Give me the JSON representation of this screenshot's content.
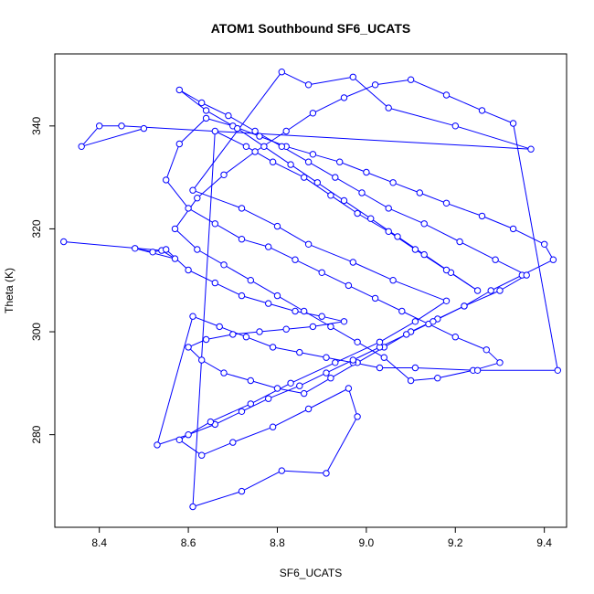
{
  "chart_data": {
    "type": "line",
    "title": "ATOM1 Southbound SF6_UCATS",
    "xlabel": "SF6_UCATS",
    "ylabel": "Theta (K)",
    "xlim": [
      8.3,
      9.45
    ],
    "ylim": [
      262,
      354
    ],
    "xticks": [
      8.4,
      8.6,
      8.8,
      9.0,
      9.2,
      9.4
    ],
    "xtick_labels": [
      "8.4",
      "8.6",
      "8.8",
      "9.0",
      "9.2",
      "9.4"
    ],
    "yticks": [
      280,
      300,
      320,
      340
    ],
    "ytick_labels": [
      "280",
      "300",
      "320",
      "340"
    ],
    "grid": false,
    "marker": "open-circle",
    "colors": {
      "series": "#0000ff",
      "axis": "#000000"
    },
    "series": [
      {
        "x": [
          8.32,
          8.54,
          8.57,
          8.48,
          8.52,
          8.55,
          8.6,
          8.66,
          8.72,
          8.78,
          8.84,
          8.9,
          8.95,
          8.88,
          8.82,
          8.76,
          8.7,
          8.64,
          8.6,
          8.63,
          8.68,
          8.74,
          8.8,
          8.86,
          8.92,
          8.98,
          9.04,
          9.1,
          9.16,
          9.22,
          9.28,
          9.35,
          9.42,
          9.4,
          9.33,
          9.26,
          9.18,
          9.12,
          9.06,
          9.0,
          8.94,
          8.88,
          8.82,
          8.76,
          8.7,
          8.64,
          8.58,
          8.55,
          8.6,
          8.66,
          8.72,
          8.78,
          8.84,
          8.9,
          8.96,
          9.02,
          9.08,
          9.14,
          9.2,
          9.27,
          9.3,
          9.24,
          9.16,
          9.1,
          9.04,
          8.98,
          8.92,
          8.86,
          8.8,
          8.74,
          8.68,
          8.62,
          8.57,
          8.62,
          8.68,
          8.75,
          8.82,
          8.88,
          8.95,
          9.02,
          9.1,
          9.18,
          9.26,
          9.33,
          9.43,
          9.25,
          9.11,
          9.03,
          8.97,
          8.91,
          8.85,
          8.79,
          8.73,
          8.67,
          8.61,
          8.53,
          8.6,
          8.66,
          8.72,
          8.78,
          8.85,
          8.91,
          8.97,
          9.03,
          9.09,
          9.15,
          9.22,
          9.3,
          9.36,
          9.29,
          9.21,
          9.13,
          9.05,
          8.99,
          8.93,
          8.87,
          8.81,
          8.75,
          8.69,
          8.63,
          8.58,
          8.64,
          8.71,
          8.77,
          8.83,
          8.89,
          8.95,
          9.01,
          9.07,
          9.13,
          9.19,
          9.25,
          9.18,
          9.11,
          9.05,
          8.98,
          8.92,
          8.86,
          8.79,
          8.73,
          8.66,
          8.61,
          8.72,
          8.81,
          8.91,
          8.98,
          8.96,
          8.87,
          8.79,
          8.7,
          8.63,
          8.58,
          8.65,
          8.74,
          8.83,
          8.93,
          9.03,
          9.11,
          9.18,
          9.06,
          8.97,
          8.87,
          8.8,
          8.72,
          8.61,
          8.81,
          8.87,
          8.97,
          9.05,
          9.2,
          9.37,
          8.45,
          8.4,
          8.36,
          8.5
        ],
        "y": [
          317.5,
          315.8,
          314.2,
          316.2,
          315.5,
          316.0,
          312.0,
          309.5,
          307.0,
          305.5,
          304.0,
          303.0,
          302.0,
          301.0,
          300.5,
          300.0,
          299.5,
          298.5,
          297.0,
          294.5,
          292.0,
          290.5,
          289.0,
          288.0,
          291.0,
          294.0,
          297.0,
          300.0,
          302.5,
          305.0,
          308.0,
          311.0,
          314.0,
          317.0,
          320.0,
          322.5,
          325.0,
          327.0,
          329.0,
          331.0,
          333.0,
          334.5,
          336.0,
          338.0,
          340.0,
          341.5,
          336.5,
          329.5,
          324.0,
          321.0,
          318.0,
          316.5,
          314.0,
          311.5,
          309.0,
          306.5,
          304.0,
          301.5,
          299.0,
          296.5,
          294.0,
          292.5,
          291.0,
          290.5,
          295.0,
          298.0,
          301.0,
          304.0,
          307.0,
          310.0,
          313.0,
          316.0,
          320.0,
          326.0,
          330.5,
          335.0,
          339.0,
          342.5,
          345.5,
          348.0,
          349.0,
          346.0,
          343.0,
          340.5,
          292.5,
          292.5,
          293.0,
          293.0,
          294.0,
          295.0,
          296.0,
          297.0,
          299.0,
          301.0,
          303.0,
          278.0,
          280.0,
          282.0,
          284.5,
          287.0,
          289.5,
          292.0,
          294.5,
          297.0,
          299.5,
          302.0,
          305.0,
          308.0,
          311.0,
          314.0,
          317.5,
          321.0,
          324.0,
          327.0,
          330.0,
          333.0,
          336.0,
          339.0,
          342.0,
          344.5,
          347.0,
          343.0,
          339.5,
          336.0,
          332.5,
          329.0,
          325.5,
          322.0,
          318.5,
          315.0,
          311.5,
          308.0,
          312.0,
          316.0,
          319.5,
          323.0,
          326.5,
          330.0,
          333.0,
          336.0,
          339.0,
          266.0,
          269.0,
          273.0,
          272.5,
          283.5,
          289.0,
          285.0,
          281.5,
          278.5,
          276.0,
          279.0,
          282.5,
          286.0,
          290.0,
          294.0,
          298.0,
          302.0,
          306.0,
          310.0,
          313.5,
          317.0,
          320.5,
          324.0,
          327.5,
          350.5,
          348.0,
          349.5,
          343.5,
          340.0,
          335.5,
          340.0,
          340.0,
          336.0,
          339.5
        ]
      }
    ]
  }
}
